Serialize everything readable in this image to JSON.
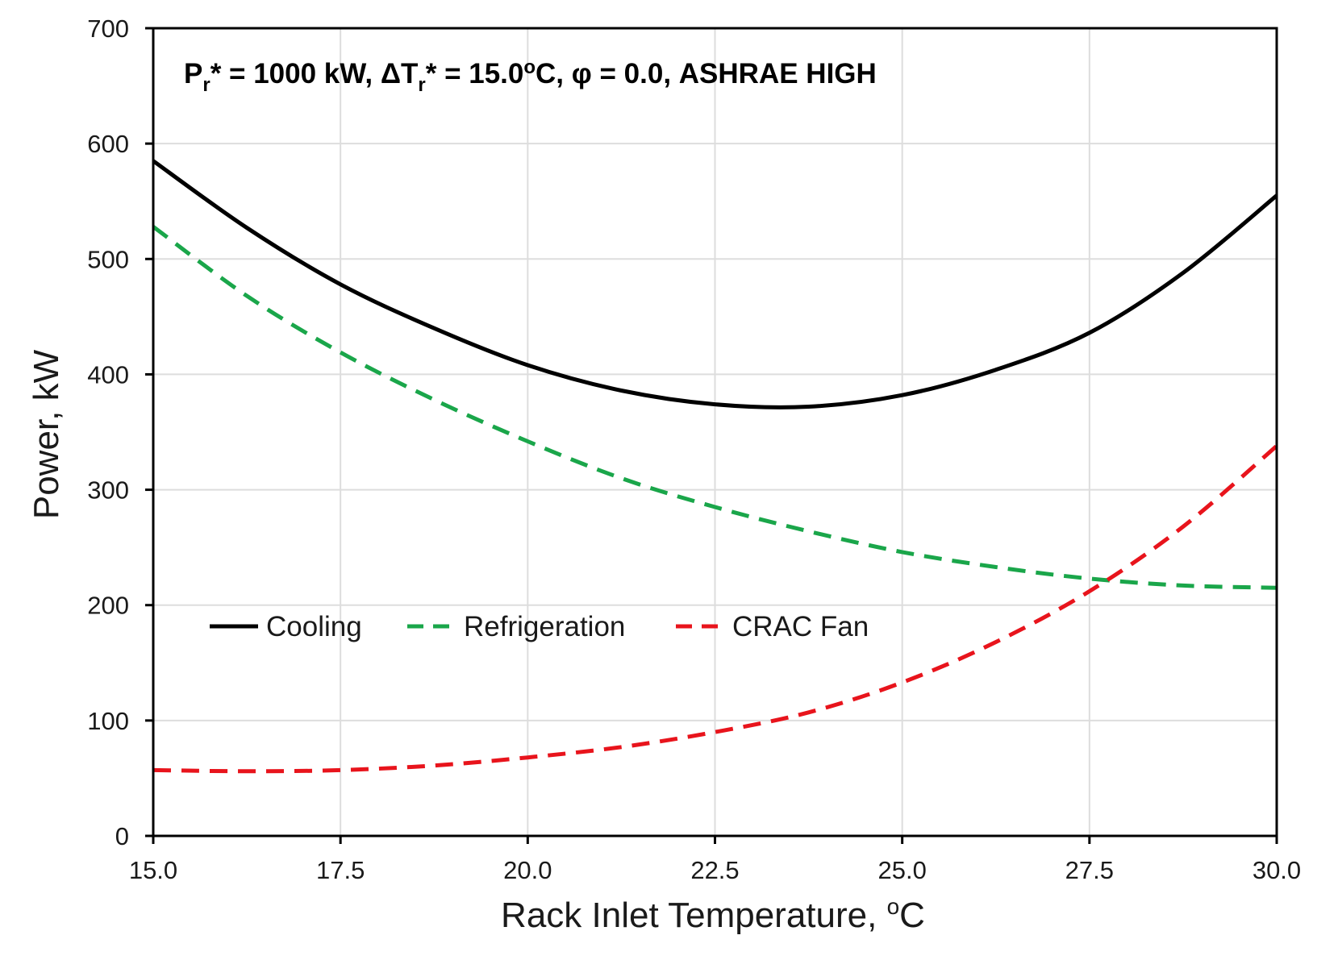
{
  "chart_data": {
    "type": "line",
    "title": "",
    "annotation": {
      "p_base": "P",
      "p_sub": "r",
      "p_rest": "* = 1000 kW, ",
      "dt_base": "ΔT",
      "dt_sub": "r",
      "dt_rest": "* = 15.0",
      "dt_sup": "o",
      "tail": "C, φ = 0.0, ASHRAE HIGH"
    },
    "xlabel": {
      "text": "Rack Inlet Temperature, ",
      "sup": "o",
      "unit": "C"
    },
    "ylabel": "Power, kW",
    "xlim": [
      15.0,
      30.0
    ],
    "ylim": [
      0,
      700
    ],
    "xticks": [
      "15.0",
      "17.5",
      "20.0",
      "22.5",
      "25.0",
      "27.5",
      "30.0"
    ],
    "yticks": [
      "0",
      "100",
      "200",
      "300",
      "400",
      "500",
      "600",
      "700"
    ],
    "grid": true,
    "legend_position": "center-left",
    "x": [
      15.0,
      16.25,
      17.5,
      18.75,
      20.0,
      21.25,
      22.5,
      23.75,
      25.0,
      26.25,
      27.5,
      28.75,
      30.0
    ],
    "series": [
      {
        "name": "Cooling",
        "color": "#000000",
        "style": "solid",
        "values": [
          585,
          527,
          478,
          440,
          408,
          386,
          374,
          372,
          382,
          404,
          436,
          488,
          555
        ]
      },
      {
        "name": "Refrigeration",
        "color": "#1aa64a",
        "style": "dashed",
        "values": [
          528,
          468,
          419,
          378,
          342,
          310,
          285,
          264,
          246,
          233,
          223,
          217,
          215
        ]
      },
      {
        "name": "CRAC Fan",
        "color": "#e8141c",
        "style": "dashed",
        "values": [
          57,
          56,
          57,
          61,
          68,
          77,
          90,
          107,
          133,
          168,
          212,
          268,
          338
        ]
      }
    ]
  }
}
